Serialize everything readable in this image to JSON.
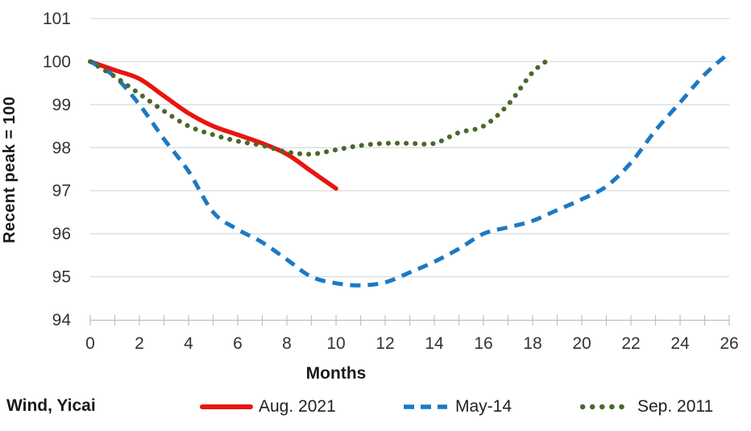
{
  "chart_data": {
    "type": "line",
    "title": "",
    "xlabel": "Months",
    "ylabel": "Recent peak = 100",
    "source_note": "Wind, Yicai",
    "xlim": [
      0,
      26
    ],
    "ylim": [
      94,
      101
    ],
    "x_ticks": [
      0,
      2,
      4,
      6,
      8,
      10,
      12,
      14,
      16,
      18,
      20,
      22,
      24,
      26
    ],
    "y_ticks": [
      94,
      95,
      96,
      97,
      98,
      99,
      100,
      101
    ],
    "grid": "horizontal",
    "grid_color": "#d9d9d9",
    "axis_color": "#bfbfbf",
    "text_color": "#333333",
    "legend_position": "bottom",
    "series": [
      {
        "name": "Aug. 2021",
        "color": "#e8150f",
        "style": "solid",
        "x": [
          0,
          1,
          2,
          3,
          4,
          5,
          6,
          7,
          8,
          9,
          10
        ],
        "values": [
          100,
          99.8,
          99.6,
          99.2,
          98.8,
          98.5,
          98.3,
          98.1,
          97.85,
          97.45,
          97.05
        ]
      },
      {
        "name": "May-14",
        "color": "#1b79c4",
        "style": "dashed",
        "x": [
          0,
          1,
          2,
          3,
          4,
          5,
          6,
          7,
          8,
          9,
          10,
          11,
          12,
          13,
          14,
          15,
          16,
          17,
          18,
          19,
          20,
          21,
          22,
          23,
          24,
          25,
          26
        ],
        "values": [
          100,
          99.65,
          99.0,
          98.2,
          97.45,
          96.5,
          96.1,
          95.8,
          95.4,
          95.0,
          94.85,
          94.8,
          94.87,
          95.1,
          95.35,
          95.65,
          96.0,
          96.15,
          96.3,
          96.55,
          96.8,
          97.1,
          97.65,
          98.4,
          99.05,
          99.7,
          100.2
        ]
      },
      {
        "name": "Sep. 2011",
        "color": "#4b682c",
        "style": "dotted",
        "x": [
          0,
          1,
          2,
          3,
          4,
          5,
          6,
          7,
          8,
          9,
          10,
          11,
          12,
          13,
          14,
          15,
          16,
          17,
          18,
          18.8
        ],
        "values": [
          100,
          99.65,
          99.25,
          98.85,
          98.5,
          98.3,
          98.15,
          98.05,
          97.9,
          97.85,
          97.95,
          98.05,
          98.1,
          98.1,
          98.1,
          98.35,
          98.5,
          99.0,
          99.75,
          100.1
        ]
      }
    ]
  }
}
